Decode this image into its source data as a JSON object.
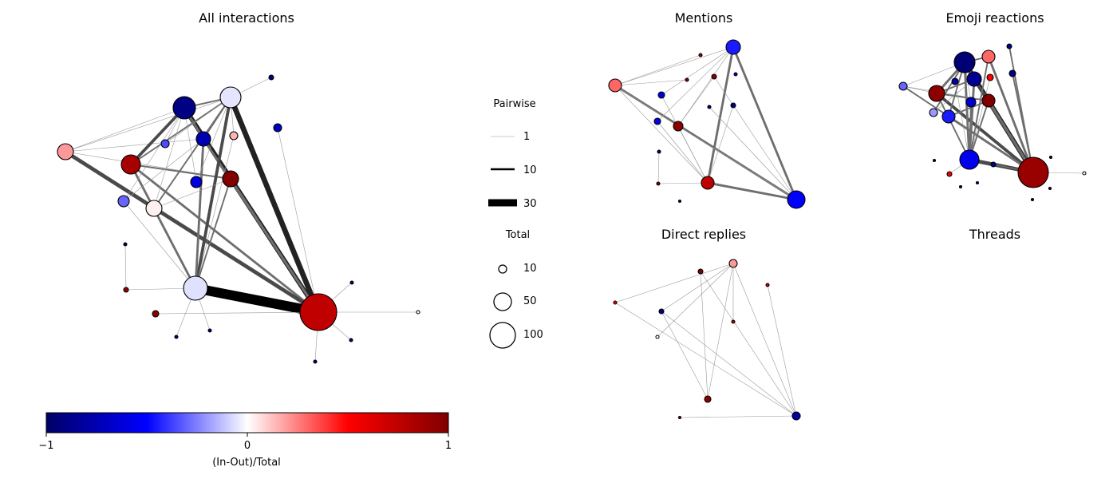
{
  "panels": {
    "all": "All interactions",
    "mentions": "Mentions",
    "emoji": "Emoji reactions",
    "replies": "Direct replies",
    "threads": "Threads"
  },
  "legend": {
    "pairwise_title": "Pairwise",
    "pairwise": [
      "1",
      "10",
      "30"
    ],
    "total_title": "Total",
    "total": [
      "10",
      "50",
      "100"
    ]
  },
  "colorbar": {
    "label": "(In-Out)/Total",
    "ticks": [
      "−1",
      "0",
      "1"
    ],
    "colors": [
      "#000066",
      "#0000ff",
      "#ffffff",
      "#ff0000",
      "#800000"
    ]
  },
  "graphs": {
    "all": {
      "nodes": [
        [
          82,
          190,
          10,
          0.2
        ],
        [
          164,
          206,
          12,
          0.85
        ],
        [
          155,
          252,
          7,
          -0.3
        ],
        [
          193,
          261,
          10,
          0.03
        ],
        [
          231,
          135,
          14,
          -0.9
        ],
        [
          207,
          180,
          5,
          -0.35
        ],
        [
          255,
          174,
          9,
          -0.75
        ],
        [
          246,
          228,
          7,
          -0.6
        ],
        [
          289,
          122,
          13,
          -0.05
        ],
        [
          293,
          170,
          5,
          0.15
        ],
        [
          289,
          224,
          10,
          1
        ],
        [
          340,
          97,
          3,
          -0.9
        ],
        [
          348,
          160,
          5,
          -0.7
        ],
        [
          245,
          361,
          15,
          -0.06
        ],
        [
          157,
          306,
          2,
          -0.9
        ],
        [
          158,
          363,
          3,
          0.9
        ],
        [
          195,
          393,
          4,
          0.95
        ],
        [
          221,
          422,
          2,
          -0.9
        ],
        [
          263,
          414,
          2,
          -0.9
        ],
        [
          399,
          391,
          23,
          0.75
        ],
        [
          441,
          354,
          2,
          -0.9
        ],
        [
          440,
          426,
          2,
          -0.9
        ],
        [
          395,
          453,
          2,
          -0.9
        ],
        [
          524,
          391,
          2,
          0
        ]
      ],
      "edges": [
        [
          245,
          361,
          399,
          391,
          13
        ],
        [
          231,
          135,
          399,
          391,
          6
        ],
        [
          289,
          122,
          399,
          391,
          7
        ],
        [
          289,
          224,
          399,
          391,
          3
        ],
        [
          255,
          174,
          399,
          391,
          3
        ],
        [
          193,
          261,
          399,
          391,
          2
        ],
        [
          164,
          206,
          399,
          391,
          3
        ],
        [
          82,
          190,
          399,
          391,
          5
        ],
        [
          82,
          190,
          193,
          261,
          4
        ],
        [
          82,
          190,
          231,
          135,
          1
        ],
        [
          82,
          190,
          289,
          122,
          1
        ],
        [
          82,
          190,
          255,
          174,
          1
        ],
        [
          82,
          190,
          289,
          224,
          1
        ],
        [
          164,
          206,
          231,
          135,
          4
        ],
        [
          164,
          206,
          289,
          122,
          2
        ],
        [
          164,
          206,
          289,
          224,
          2
        ],
        [
          164,
          206,
          245,
          361,
          3
        ],
        [
          164,
          206,
          193,
          261,
          2
        ],
        [
          231,
          135,
          255,
          174,
          3
        ],
        [
          231,
          135,
          289,
          122,
          2
        ],
        [
          231,
          135,
          193,
          261,
          1
        ],
        [
          289,
          122,
          245,
          361,
          4
        ],
        [
          255,
          174,
          245,
          361,
          3
        ],
        [
          289,
          122,
          193,
          261,
          2
        ],
        [
          289,
          122,
          255,
          174,
          2
        ],
        [
          193,
          261,
          289,
          224,
          1
        ],
        [
          193,
          261,
          245,
          361,
          2
        ],
        [
          155,
          252,
          255,
          174,
          1
        ],
        [
          155,
          252,
          231,
          135,
          1
        ],
        [
          155,
          252,
          245,
          361,
          1
        ],
        [
          207,
          180,
          231,
          135,
          1
        ],
        [
          207,
          180,
          289,
          122,
          1
        ],
        [
          246,
          228,
          231,
          135,
          1
        ],
        [
          246,
          228,
          289,
          122,
          1
        ],
        [
          293,
          170,
          289,
          122,
          1
        ],
        [
          293,
          170,
          245,
          361,
          1
        ],
        [
          289,
          224,
          245,
          361,
          2
        ],
        [
          348,
          160,
          399,
          391,
          1
        ],
        [
          340,
          97,
          289,
          122,
          1
        ],
        [
          158,
          363,
          245,
          361,
          1
        ],
        [
          195,
          393,
          399,
          391,
          1
        ],
        [
          157,
          306,
          158,
          363,
          1
        ],
        [
          221,
          422,
          245,
          361,
          1
        ],
        [
          263,
          414,
          245,
          361,
          1
        ],
        [
          441,
          354,
          399,
          391,
          1
        ],
        [
          440,
          426,
          399,
          391,
          1
        ],
        [
          395,
          453,
          399,
          391,
          1
        ],
        [
          524,
          391,
          399,
          391,
          1
        ]
      ]
    },
    "mentions": {
      "nodes": [
        [
          771,
          107,
          8,
          0.3
        ],
        [
          919,
          59,
          9,
          -0.45
        ],
        [
          878,
          69,
          2,
          0.9
        ],
        [
          861,
          100,
          2,
          0.95
        ],
        [
          895,
          96,
          3,
          0.95
        ],
        [
          922,
          93,
          2,
          -0.6
        ],
        [
          829,
          119,
          4,
          -0.6
        ],
        [
          824,
          152,
          4,
          -0.55
        ],
        [
          850,
          158,
          6,
          0.95
        ],
        [
          889,
          134,
          2,
          -0.9
        ],
        [
          919,
          132,
          3,
          -0.9
        ],
        [
          826,
          190,
          2,
          -0.9
        ],
        [
          825,
          230,
          2,
          0.95
        ],
        [
          852,
          252,
          1.5,
          -0.9
        ],
        [
          887,
          229,
          8,
          0.75
        ],
        [
          998,
          250,
          11,
          -0.5
        ]
      ],
      "edges": [
        [
          771,
          107,
          998,
          250,
          3
        ],
        [
          919,
          59,
          998,
          250,
          3
        ],
        [
          919,
          59,
          887,
          229,
          3
        ],
        [
          887,
          229,
          998,
          250,
          3
        ],
        [
          771,
          107,
          919,
          59,
          1
        ],
        [
          771,
          107,
          878,
          69,
          1
        ],
        [
          771,
          107,
          861,
          100,
          1
        ],
        [
          771,
          107,
          850,
          158,
          1
        ],
        [
          771,
          107,
          887,
          229,
          1
        ],
        [
          919,
          59,
          850,
          158,
          1
        ],
        [
          919,
          59,
          829,
          119,
          1
        ],
        [
          919,
          59,
          824,
          152,
          1
        ],
        [
          895,
          96,
          850,
          158,
          1
        ],
        [
          895,
          96,
          998,
          250,
          1
        ],
        [
          850,
          158,
          998,
          250,
          1
        ],
        [
          829,
          119,
          887,
          229,
          1
        ],
        [
          824,
          152,
          887,
          229,
          1
        ],
        [
          889,
          134,
          998,
          250,
          1
        ],
        [
          919,
          132,
          887,
          229,
          1
        ],
        [
          826,
          190,
          825,
          230,
          1
        ],
        [
          825,
          230,
          887,
          229,
          1
        ],
        [
          850,
          158,
          887,
          229,
          1
        ]
      ]
    },
    "emoji": {
      "nodes": [
        [
          1132,
          108,
          5,
          -0.3
        ],
        [
          1209,
          78,
          13,
          -0.95
        ],
        [
          1239,
          71,
          8,
          0.3
        ],
        [
          1265,
          58,
          3,
          -0.9
        ],
        [
          1269,
          92,
          4,
          -0.9
        ],
        [
          1197,
          102,
          4,
          -0.8
        ],
        [
          1221,
          99,
          9,
          -0.85
        ],
        [
          1241,
          97,
          4,
          0.5
        ],
        [
          1174,
          117,
          10,
          0.95
        ],
        [
          1217,
          128,
          6,
          -0.65
        ],
        [
          1239,
          126,
          8,
          1
        ],
        [
          1170,
          141,
          5,
          -0.2
        ],
        [
          1189,
          146,
          8,
          -0.45
        ],
        [
          1215,
          200,
          12,
          -0.55
        ],
        [
          1295,
          216,
          19,
          0.9
        ],
        [
          1171,
          201,
          1.5,
          -0.9
        ],
        [
          1190,
          218,
          3,
          0.5
        ],
        [
          1204,
          234,
          1.5,
          -0.9
        ],
        [
          1225,
          229,
          1.5,
          -0.9
        ],
        [
          1245,
          206,
          3,
          -0.9
        ],
        [
          1317,
          197,
          1.5,
          -0.9
        ],
        [
          1316,
          236,
          1.5,
          -0.9
        ],
        [
          1294,
          250,
          1.5,
          -0.9
        ],
        [
          1359,
          217,
          2,
          0
        ]
      ],
      "edges": [
        [
          1209,
          78,
          1295,
          216,
          6
        ],
        [
          1221,
          99,
          1295,
          216,
          4
        ],
        [
          1239,
          126,
          1295,
          216,
          3
        ],
        [
          1215,
          200,
          1295,
          216,
          5
        ],
        [
          1174,
          117,
          1295,
          216,
          4
        ],
        [
          1189,
          146,
          1295,
          216,
          3
        ],
        [
          1239,
          71,
          1295,
          216,
          3
        ],
        [
          1132,
          108,
          1295,
          216,
          2
        ],
        [
          1269,
          92,
          1295,
          216,
          2
        ],
        [
          1265,
          58,
          1295,
          216,
          2
        ],
        [
          1209,
          78,
          1215,
          200,
          3
        ],
        [
          1221,
          99,
          1215,
          200,
          3
        ],
        [
          1239,
          71,
          1215,
          200,
          2
        ],
        [
          1174,
          117,
          1215,
          200,
          2
        ],
        [
          1174,
          117,
          1209,
          78,
          3
        ],
        [
          1174,
          117,
          1239,
          126,
          2
        ],
        [
          1174,
          117,
          1221,
          99,
          2
        ],
        [
          1132,
          108,
          1209,
          78,
          1
        ],
        [
          1132,
          108,
          1174,
          117,
          1
        ],
        [
          1132,
          108,
          1239,
          126,
          1
        ],
        [
          1209,
          78,
          1239,
          71,
          2
        ],
        [
          1209,
          78,
          1221,
          99,
          3
        ],
        [
          1170,
          141,
          1209,
          78,
          2
        ],
        [
          1170,
          141,
          1221,
          99,
          1
        ],
        [
          1189,
          146,
          1209,
          78,
          2
        ],
        [
          1189,
          146,
          1239,
          126,
          2
        ],
        [
          1217,
          128,
          1215,
          200,
          2
        ],
        [
          1217,
          128,
          1209,
          78,
          1
        ],
        [
          1197,
          102,
          1215,
          200,
          1
        ],
        [
          1241,
          97,
          1215,
          200,
          1
        ],
        [
          1239,
          126,
          1215,
          200,
          2
        ],
        [
          1245,
          206,
          1295,
          216,
          1
        ],
        [
          1359,
          217,
          1295,
          216,
          1
        ],
        [
          1190,
          218,
          1215,
          200,
          1
        ]
      ]
    },
    "replies": {
      "nodes": [
        [
          771,
          379,
          2,
          0.5
        ],
        [
          878,
          340,
          3,
          0.95
        ],
        [
          919,
          330,
          5,
          0.2
        ],
        [
          962,
          357,
          2,
          0.7
        ],
        [
          919,
          403,
          2,
          0.75
        ],
        [
          829,
          390,
          3,
          -0.9
        ],
        [
          824,
          422,
          2,
          0
        ],
        [
          887,
          500,
          4,
          0.95
        ],
        [
          852,
          523,
          1.5,
          0.95
        ],
        [
          998,
          521,
          5,
          -0.8
        ]
      ],
      "edges": [
        [
          771,
          379,
          919,
          330,
          1
        ],
        [
          771,
          379,
          998,
          521,
          1
        ],
        [
          919,
          330,
          998,
          521,
          1
        ],
        [
          962,
          357,
          998,
          521,
          1
        ],
        [
          919,
          330,
          887,
          500,
          1
        ],
        [
          878,
          340,
          887,
          500,
          1
        ],
        [
          829,
          390,
          887,
          500,
          1
        ],
        [
          829,
          390,
          919,
          330,
          1
        ],
        [
          878,
          340,
          998,
          521,
          1
        ],
        [
          852,
          523,
          998,
          521,
          1
        ],
        [
          919,
          403,
          919,
          330,
          1
        ],
        [
          824,
          422,
          919,
          330,
          1
        ],
        [
          829,
          390,
          998,
          521,
          1
        ]
      ]
    }
  }
}
